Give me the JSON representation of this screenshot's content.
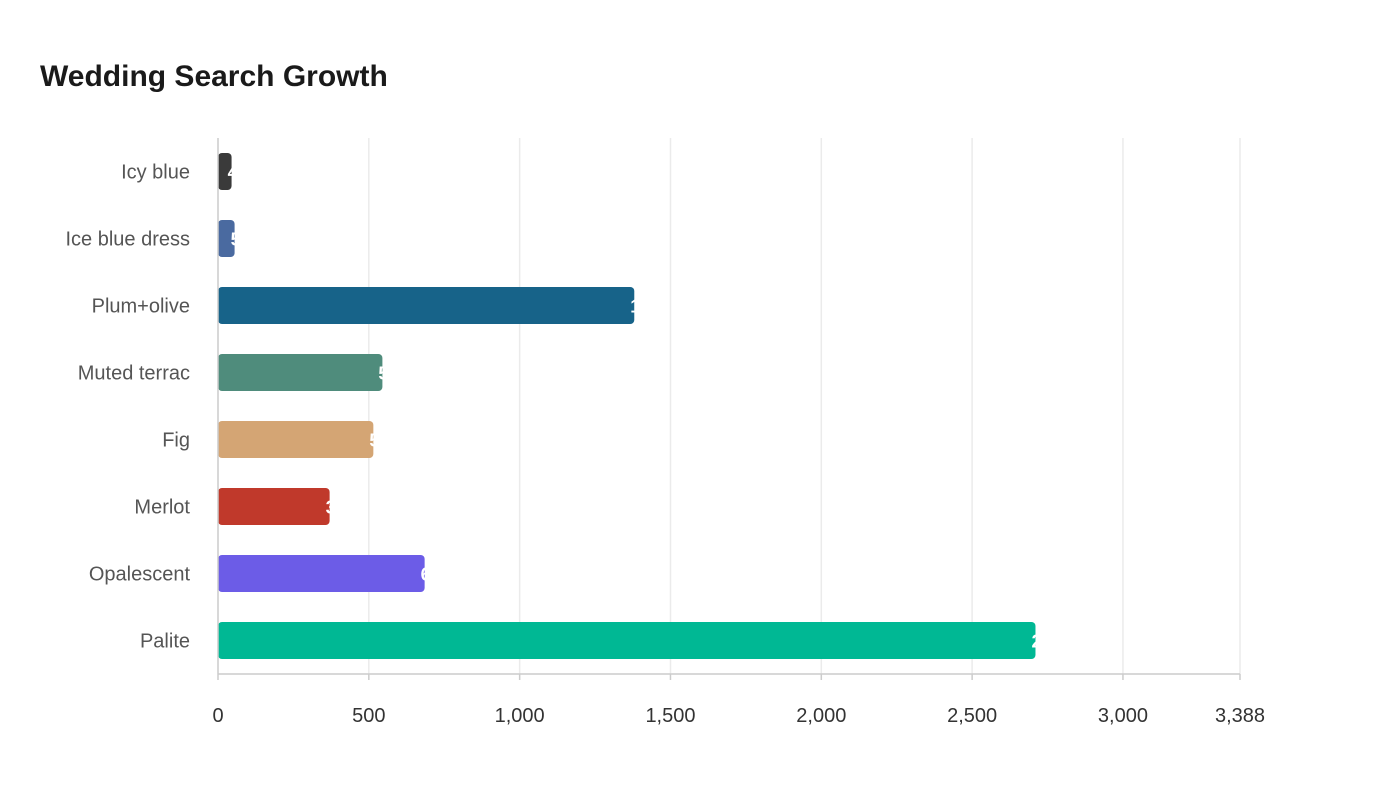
{
  "chart_data": {
    "type": "bar",
    "orientation": "horizontal",
    "title": "Wedding Search Growth",
    "xlabel": "",
    "ylabel": "",
    "categories": [
      "Icy blue",
      "Ice blue dress",
      "Plum+olive",
      "Muted terrac",
      "Fig",
      "Merlot",
      "Opalescent",
      "Palite"
    ],
    "values": [
      45,
      55,
      1380,
      545,
      515,
      370,
      685,
      2710
    ],
    "colors": [
      "#3a3a3a",
      "#4a6aa0",
      "#176389",
      "#4f8c7c",
      "#d4a574",
      "#c0392b",
      "#6c5ce7",
      "#00b894"
    ],
    "xlim": [
      0,
      3388
    ],
    "x_ticks": [
      0,
      500,
      1000,
      1500,
      2000,
      2500,
      3000,
      3388
    ],
    "x_tick_labels": [
      "0",
      "500",
      "1,000",
      "1,500",
      "2,000",
      "2,500",
      "3,000",
      "3,388"
    ],
    "grid": true,
    "legend": "none"
  }
}
